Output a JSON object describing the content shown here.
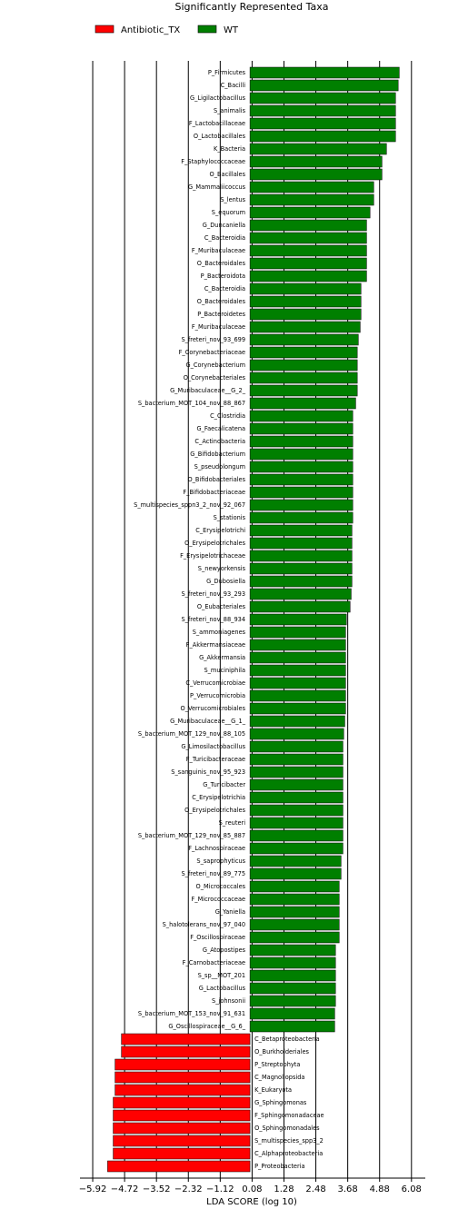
{
  "chart_data": {
    "type": "barh",
    "title": "Significantly Represented Taxa",
    "xlabel": "LDA SCORE (log 10)",
    "categories": [
      "P_Firmicutes",
      "C_Bacilli",
      "G_Ligilactobacillus",
      "S_animalis",
      "F_Lactobacillaceae",
      "O_Lactobacillales",
      "K_Bacteria",
      "F_Staphylococcaceae",
      "O_Bacillales",
      "G_Mammaliicoccus",
      "S_lentus",
      "S_equorum",
      "G_Duncaniella",
      "C_Bacteroidia",
      "F_Muribaculaceae",
      "O_Bacteroidales",
      "P_Bacteroidota",
      "C_Bacteroidia",
      "O_Bacteroidales",
      "P_Bacteroidetes",
      "F_Muribaculaceae",
      "S_freteri_nov_93_699",
      "F_Corynebacteriaceae",
      "G_Corynebacterium",
      "O_Corynebacteriales",
      "G_Muribaculaceae__G_2_",
      "S_bacterium_MOT_104_nov_88_867",
      "C_Clostridia",
      "G_Faecalicatena",
      "C_Actinobacteria",
      "G_Bifidobacterium",
      "S_pseudolongum",
      "O_Bifidobacteriales",
      "F_Bifidobacteriaceae",
      "S_multispecies_sppn3_2_nov_92_067",
      "S_stationis",
      "C_Erysipelotrichi",
      "O_Erysipelotrichales",
      "F_Erysipelotrichaceae",
      "S_newyorkensis",
      "G_Dubosiella",
      "S_freteri_nov_93_293",
      "O_Eubacteriales",
      "S_freteri_nov_88_934",
      "S_ammoniagenes",
      "F_Akkermansiaceae",
      "G_Akkermansia",
      "S_muciniphila",
      "C_Verrucomicrobiae",
      "P_Verrucomicrobia",
      "O_Verrucomicrobiales",
      "G_Muribaculaceae__G_1_",
      "S_bacterium_MOT_129_nov_88_105",
      "G_Limosilactobacillus",
      "F_Turicibacteraceae",
      "S_sanguinis_nov_95_923",
      "G_Turicibacter",
      "C_Erysipelotrichia",
      "O_Erysipelotrichales",
      "S_reuteri",
      "S_bacterium_MOT_129_nov_85_887",
      "F_Lachnospiraceae",
      "S_saprophyticus",
      "S_freteri_nov_89_775",
      "O_Micrococcales",
      "F_Micrococcaceae",
      "G_Yaniella",
      "S_halotolerans_nov_97_040",
      "F_Oscillospiraceae",
      "G_Atopostipes",
      "F_Carnobacteriaceae",
      "S_sp__MOT_201",
      "G_Lactobacillus",
      "S_johnsonii",
      "S_bacterium_MOT_153_nov_91_631",
      "G_Oscillospiraceae__G_6_",
      "C_Betaproteobacteria",
      "O_Burkholderiales",
      "P_Streptophyta",
      "C_Magnoliopsida",
      "K_Eukaryota",
      "G_Sphingomonas",
      "F_Sphingomonadaceae",
      "O_Sphingomonadales",
      "S_multispecies_spp3_2",
      "C_Alphaproteobacteria",
      "P_Proteobacteria"
    ],
    "series": [
      {
        "name": "Antibiotic_TX",
        "color": "#ff0000",
        "values": [
          null,
          null,
          null,
          null,
          null,
          null,
          null,
          null,
          null,
          null,
          null,
          null,
          null,
          null,
          null,
          null,
          null,
          null,
          null,
          null,
          null,
          null,
          null,
          null,
          null,
          null,
          null,
          null,
          null,
          null,
          null,
          null,
          null,
          null,
          null,
          null,
          null,
          null,
          null,
          null,
          null,
          null,
          null,
          null,
          null,
          null,
          null,
          null,
          null,
          null,
          null,
          null,
          null,
          null,
          null,
          null,
          null,
          null,
          null,
          null,
          null,
          null,
          null,
          null,
          null,
          null,
          null,
          null,
          null,
          null,
          null,
          null,
          null,
          null,
          null,
          null,
          -4.84,
          -4.84,
          -5.08,
          -5.08,
          -5.08,
          -5.15,
          -5.15,
          -5.15,
          -5.15,
          -5.15,
          -5.36
        ]
      },
      {
        "name": "WT",
        "color": "#007f00",
        "values": [
          5.62,
          5.58,
          5.48,
          5.48,
          5.48,
          5.48,
          5.14,
          4.97,
          4.97,
          4.66,
          4.66,
          4.52,
          4.39,
          4.39,
          4.39,
          4.39,
          4.39,
          4.18,
          4.18,
          4.18,
          4.15,
          4.08,
          4.04,
          4.04,
          4.04,
          4.04,
          3.98,
          3.87,
          3.87,
          3.87,
          3.87,
          3.87,
          3.87,
          3.87,
          3.87,
          3.87,
          3.84,
          3.84,
          3.84,
          3.84,
          3.84,
          3.81,
          3.77,
          3.63,
          3.6,
          3.6,
          3.6,
          3.6,
          3.6,
          3.6,
          3.6,
          3.57,
          3.53,
          3.5,
          3.5,
          3.5,
          3.5,
          3.5,
          3.5,
          3.5,
          3.5,
          3.5,
          3.43,
          3.43,
          3.36,
          3.36,
          3.36,
          3.36,
          3.36,
          3.22,
          3.22,
          3.22,
          3.22,
          3.22,
          3.19,
          3.19,
          null,
          null,
          null,
          null,
          null,
          null,
          null,
          null,
          null,
          null,
          null
        ]
      }
    ],
    "xlim": [
      -6.4,
      6.6
    ],
    "xticks": [
      {
        "value": -5.92,
        "label": "−5.92"
      },
      {
        "value": -4.72,
        "label": "−4.72"
      },
      {
        "value": -3.52,
        "label": "−3.52"
      },
      {
        "value": -2.32,
        "label": "−2.32"
      },
      {
        "value": -1.12,
        "label": "−1.12"
      },
      0.08,
      1.28,
      2.48,
      3.68,
      4.88,
      6.08
    ],
    "grid": true,
    "legend": "upper left"
  }
}
